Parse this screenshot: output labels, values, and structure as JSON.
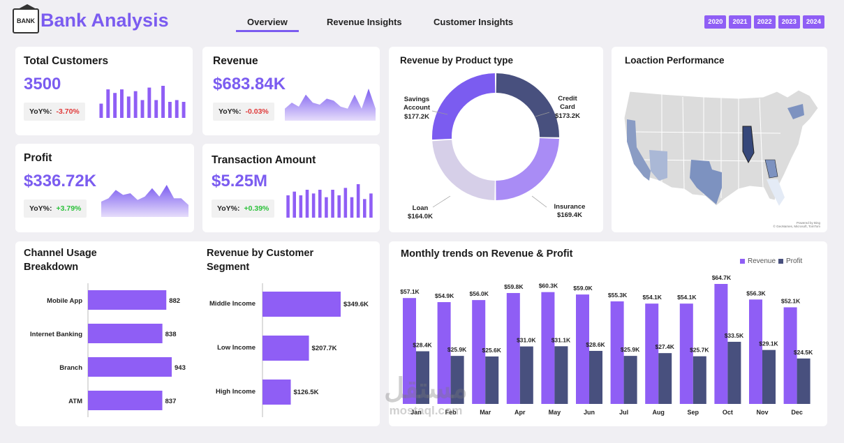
{
  "app": {
    "title": "Bank Analysis",
    "logo_text": "BANK",
    "tabs": [
      "Overview",
      "Revenue Insights",
      "Customer Insights"
    ],
    "years": [
      "2020",
      "2021",
      "2022",
      "2023",
      "2024"
    ]
  },
  "kpis": {
    "customers": {
      "title": "Total Customers",
      "value": "3500",
      "yoy_label": "YoY%:",
      "yoy": "-3.70%",
      "spark": [
        8,
        16,
        14,
        16,
        12,
        15,
        10,
        17,
        10,
        18,
        9,
        10,
        9
      ]
    },
    "revenue": {
      "title": "Revenue",
      "value": "$683.84K",
      "yoy_label": "YoY%:",
      "yoy": "-0.03%",
      "spark": [
        55,
        58,
        56,
        62,
        58,
        57,
        60,
        59,
        56,
        55,
        62,
        55,
        65,
        55
      ]
    },
    "profit": {
      "title": "Profit",
      "value": "$336.72K",
      "yoy_label": "YoY%:",
      "yoy": "+3.79%",
      "spark": [
        28,
        30,
        35,
        32,
        33,
        29,
        31,
        36,
        31,
        38,
        30,
        30,
        26
      ]
    },
    "transaction": {
      "title": "Transaction Amount",
      "value": "$5.25M",
      "yoy_label": "YoY%:",
      "yoy": "+0.39%",
      "spark": [
        12,
        14,
        12,
        15,
        13,
        15,
        11,
        15,
        12,
        16,
        11,
        18,
        10,
        13
      ]
    }
  },
  "colors": {
    "accent": "#7b5cf0",
    "purple": "#8f5ef5",
    "navy": "#48507e",
    "light": "#a98cf5",
    "lavender": "#d6cfe8",
    "neg": "#e03a3a",
    "pos": "#2cc13b"
  },
  "donut": {
    "title": "Revenue by Product type",
    "segments": [
      {
        "name": "Credit Card",
        "lines": [
          "Credit",
          "Card"
        ],
        "label": "$173.2K",
        "value": 173.2,
        "color": "#48507e"
      },
      {
        "name": "Insurance",
        "lines": [
          "Insurance"
        ],
        "label": "$169.4K",
        "value": 169.4,
        "color": "#a98cf5"
      },
      {
        "name": "Loan",
        "lines": [
          "Loan"
        ],
        "label": "$164.0K",
        "value": 164.0,
        "color": "#d6cfe8"
      },
      {
        "name": "Savings Account",
        "lines": [
          "Savings",
          "Account"
        ],
        "label": "$177.2K",
        "value": 177.2,
        "color": "#7b5cf0"
      }
    ]
  },
  "map": {
    "title": "Loaction Performance",
    "credit": "Powered by Bing\n© GeoNames, Microsoft, TomTom"
  },
  "channel": {
    "title_lines": [
      "Channel Usage",
      "Breakdown"
    ],
    "items": [
      {
        "label": "Mobile App",
        "value": 882
      },
      {
        "label": "Internet Banking",
        "value": 838
      },
      {
        "label": "Branch",
        "value": 943
      },
      {
        "label": "ATM",
        "value": 837
      }
    ]
  },
  "segment": {
    "title_lines": [
      "Revenue by Customer",
      "Segment"
    ],
    "items": [
      {
        "label": "Middle Income",
        "value": 349.6,
        "display": "$349.6K"
      },
      {
        "label": "Low Income",
        "value": 207.7,
        "display": "$207.7K"
      },
      {
        "label": "High Income",
        "value": 126.5,
        "display": "$126.5K"
      }
    ]
  },
  "chart_data": {
    "type": "bar",
    "title": "Monthly trends on Revenue & Profit",
    "categories": [
      "Jan",
      "Feb",
      "Mar",
      "Apr",
      "May",
      "Jun",
      "Jul",
      "Aug",
      "Sep",
      "Oct",
      "Nov",
      "Dec"
    ],
    "series": [
      {
        "name": "Revenue",
        "color": "#8f5ef5",
        "values": [
          57.1,
          54.9,
          56.0,
          59.8,
          60.3,
          59.0,
          55.3,
          54.1,
          54.1,
          64.7,
          56.3,
          52.1
        ],
        "labels": [
          "$57.1K",
          "$54.9K",
          "$56.0K",
          "$59.8K",
          "$60.3K",
          "$59.0K",
          "$55.3K",
          "$54.1K",
          "$54.1K",
          "$64.7K",
          "$56.3K",
          "$52.1K"
        ]
      },
      {
        "name": "Profit",
        "color": "#48507e",
        "values": [
          28.4,
          25.9,
          25.6,
          31.0,
          31.1,
          28.6,
          25.9,
          27.4,
          25.7,
          33.5,
          29.1,
          24.5
        ],
        "labels": [
          "$28.4K",
          "$25.9K",
          "$25.6K",
          "$31.0K",
          "$31.1K",
          "$28.6K",
          "$25.9K",
          "$27.4K",
          "$25.7K",
          "$33.5K",
          "$29.1K",
          "$24.5K"
        ]
      }
    ],
    "legend_position": "top-right",
    "grid": false
  },
  "watermark": {
    "arabic": "مستقل",
    "latin": "mostaql.com"
  }
}
